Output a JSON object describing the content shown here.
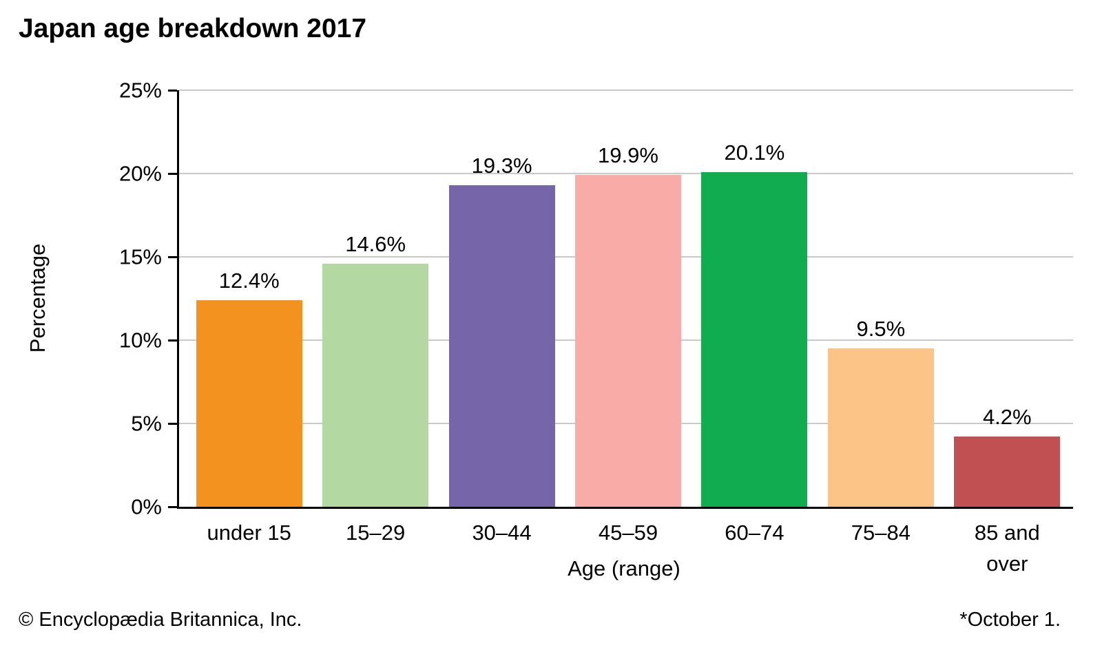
{
  "page": {
    "title": "Japan age breakdown 2017"
  },
  "chart_data": {
    "type": "bar",
    "title": "Japan age breakdown 2017",
    "categories": [
      "under 15",
      "15–29",
      "30–44",
      "45–59",
      "60–74",
      "75–84",
      "85 and\nover"
    ],
    "values": [
      12.4,
      14.6,
      19.3,
      19.9,
      20.1,
      9.5,
      4.2
    ],
    "value_labels": [
      "12.4%",
      "14.6%",
      "19.3%",
      "19.9%",
      "20.1%",
      "9.5%",
      "4.2%"
    ],
    "bar_colors": [
      "#f3921f",
      "#b4d8a2",
      "#7665a9",
      "#f9aba7",
      "#11ac50",
      "#fcc487",
      "#c05051"
    ],
    "xlabel": "Age (range)",
    "ylabel": "Percentage",
    "ylim": [
      0,
      25
    ],
    "ytick_step": 5,
    "ytick_labels": [
      "0%",
      "5%",
      "10%",
      "15%",
      "20%",
      "25%"
    ],
    "grid": true,
    "gridline_color": "#c9c9c9",
    "axis_color": "#000000",
    "legend_position": "none"
  },
  "footer": {
    "copyright": "© Encyclopædia Britannica, Inc.",
    "note": "*October 1."
  }
}
